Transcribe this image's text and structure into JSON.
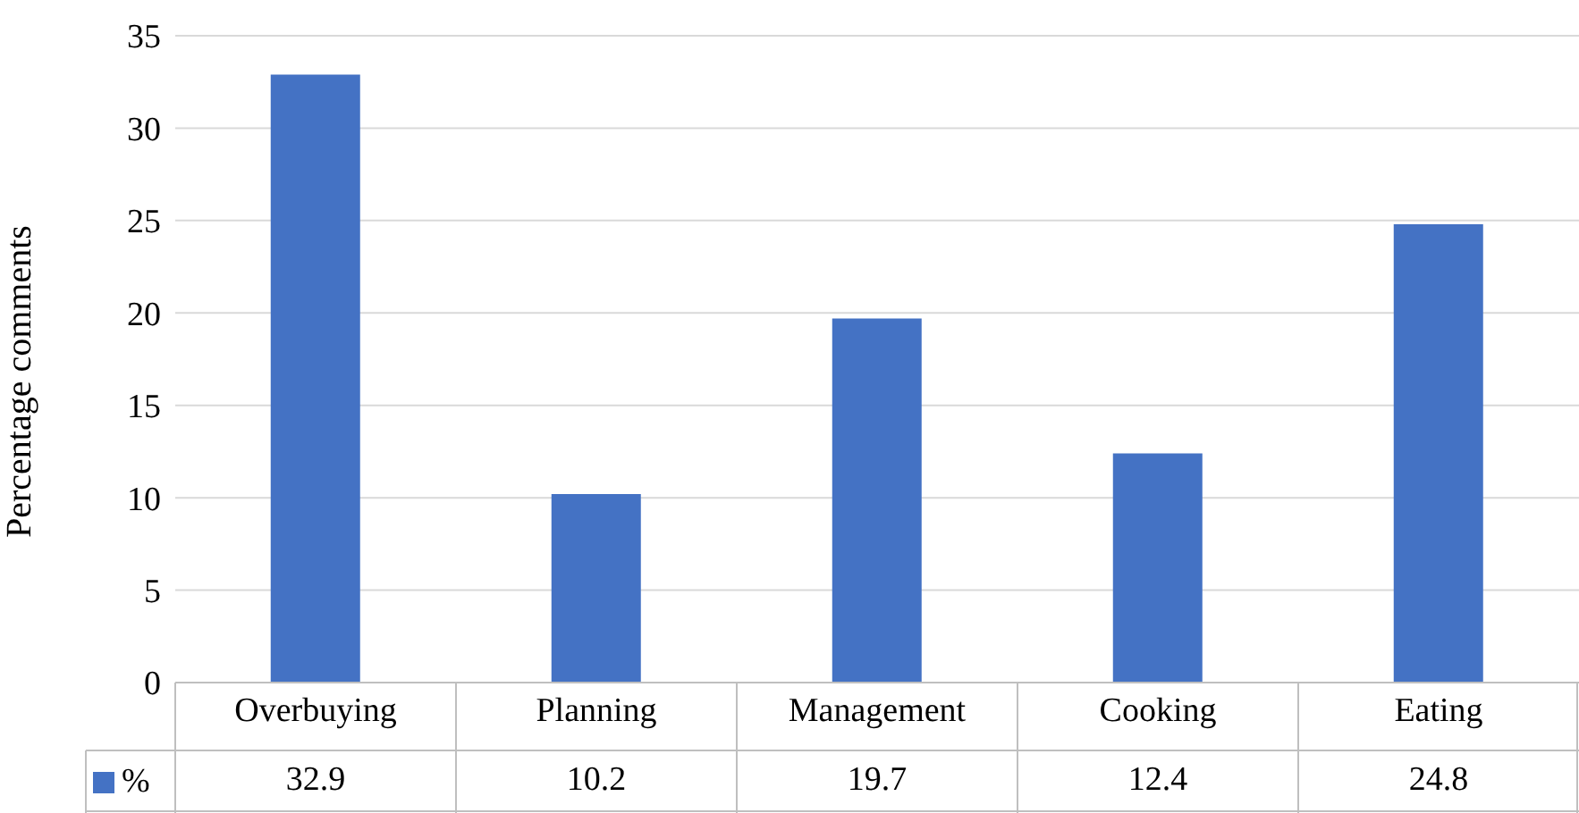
{
  "chart_data": {
    "type": "bar",
    "ylabel": "Percentage comments",
    "categories": [
      "Overbuying",
      "Planning",
      "Management",
      "Cooking",
      "Eating"
    ],
    "series": [
      {
        "name": "%",
        "color": "#4472c4",
        "values": [
          32.9,
          10.2,
          19.7,
          12.4,
          24.8
        ]
      }
    ],
    "ylim": [
      0,
      35
    ],
    "yticks": [
      0,
      5,
      10,
      15,
      20,
      25,
      30,
      35
    ],
    "grid": "y",
    "legend": "bottom",
    "data_labels": true
  }
}
